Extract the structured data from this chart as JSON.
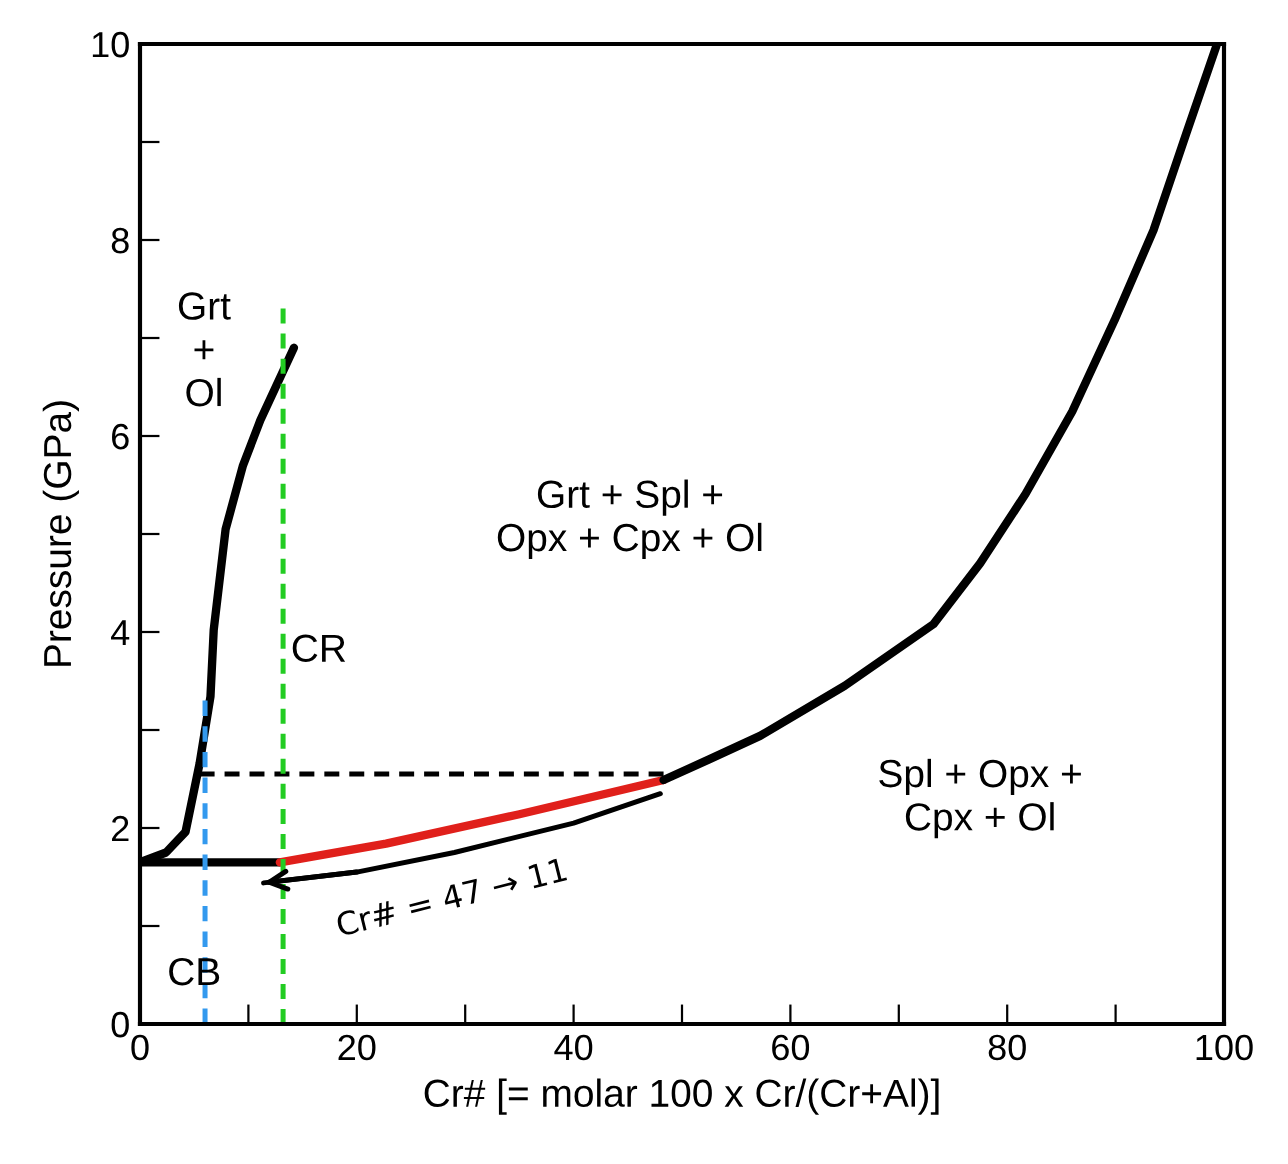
{
  "chart_data": {
    "type": "line",
    "xlabel": "Cr# [= molar 100 x Cr/(Cr+Al)]",
    "ylabel": "Pressure (GPa)",
    "xlim": [
      0,
      100
    ],
    "ylim": [
      0,
      10
    ],
    "xticks": [
      0,
      {
        "value": 10,
        "label": null
      },
      20,
      {
        "value": 30,
        "label": null
      },
      40,
      {
        "value": 50,
        "label": null
      },
      60,
      {
        "value": 70,
        "label": null
      },
      80,
      {
        "value": 90,
        "label": null
      },
      100
    ],
    "yticks": [
      0,
      {
        "value": 1,
        "label": null
      },
      2,
      {
        "value": 3,
        "label": null
      },
      4,
      {
        "value": 5,
        "label": null
      },
      6,
      {
        "value": 7,
        "label": null
      },
      8,
      {
        "value": 9,
        "label": null
      },
      10
    ],
    "grid": false,
    "legend": false,
    "marker": "none",
    "series": [
      {
        "color": "#000000",
        "line_style": "solid",
        "x": [
          0,
          12.9
        ],
        "values": [
          1.65,
          1.65
        ]
      },
      {
        "color": "#e0201b",
        "line_style": "solid",
        "x": [
          12.9,
          22.7,
          35,
          48.3
        ],
        "values": [
          1.65,
          1.84,
          2.14,
          2.49
        ]
      },
      {
        "color": "#000000",
        "line_style": "solid",
        "x": [
          48.3,
          52.5,
          57.2,
          65,
          73.2,
          77.5,
          81.7,
          86,
          89.9,
          93.5,
          96.5,
          99.3
        ],
        "values": [
          2.49,
          2.7,
          2.94,
          3.45,
          4.08,
          4.7,
          5.41,
          6.25,
          7.18,
          8.1,
          9.08,
          9.98
        ]
      },
      {
        "color": "#000000",
        "line_style": "solid",
        "x": [
          0,
          2.4,
          4.2,
          5.5,
          6.5,
          6.8,
          7.9,
          9.5,
          11.1,
          14.2
        ],
        "values": [
          1.65,
          1.75,
          1.96,
          2.66,
          3.34,
          4.02,
          5.05,
          5.7,
          6.16,
          6.9
        ]
      },
      {
        "color": "#000000",
        "line_style": "solid",
        "x": [
          48,
          40,
          29,
          20,
          11.4
        ],
        "values": [
          2.35,
          2.05,
          1.75,
          1.55,
          1.44
        ]
      },
      {
        "color": "#000000",
        "line_style": "dashed",
        "x": [
          5.5,
          48.3
        ],
        "values": [
          2.55,
          2.55
        ]
      },
      {
        "color": "#3399ee",
        "line_style": "dashed",
        "x": [
          6,
          6
        ],
        "values": [
          0,
          3.3
        ]
      },
      {
        "color": "#22cc22",
        "line_style": "dashed",
        "x": [
          13.2,
          13.2
        ],
        "values": [
          0,
          7.3
        ]
      }
    ],
    "annotations": [
      "Grt\n+\nOl",
      "Grt + Spl +\nOpx + Cpx + Ol",
      "Spl + Opx +\nCpx + Ol",
      "CR",
      "CB",
      {
        "text": "Cr# = 47 → 11",
        "x": 11.4,
        "y": 1.44
      }
    ]
  }
}
